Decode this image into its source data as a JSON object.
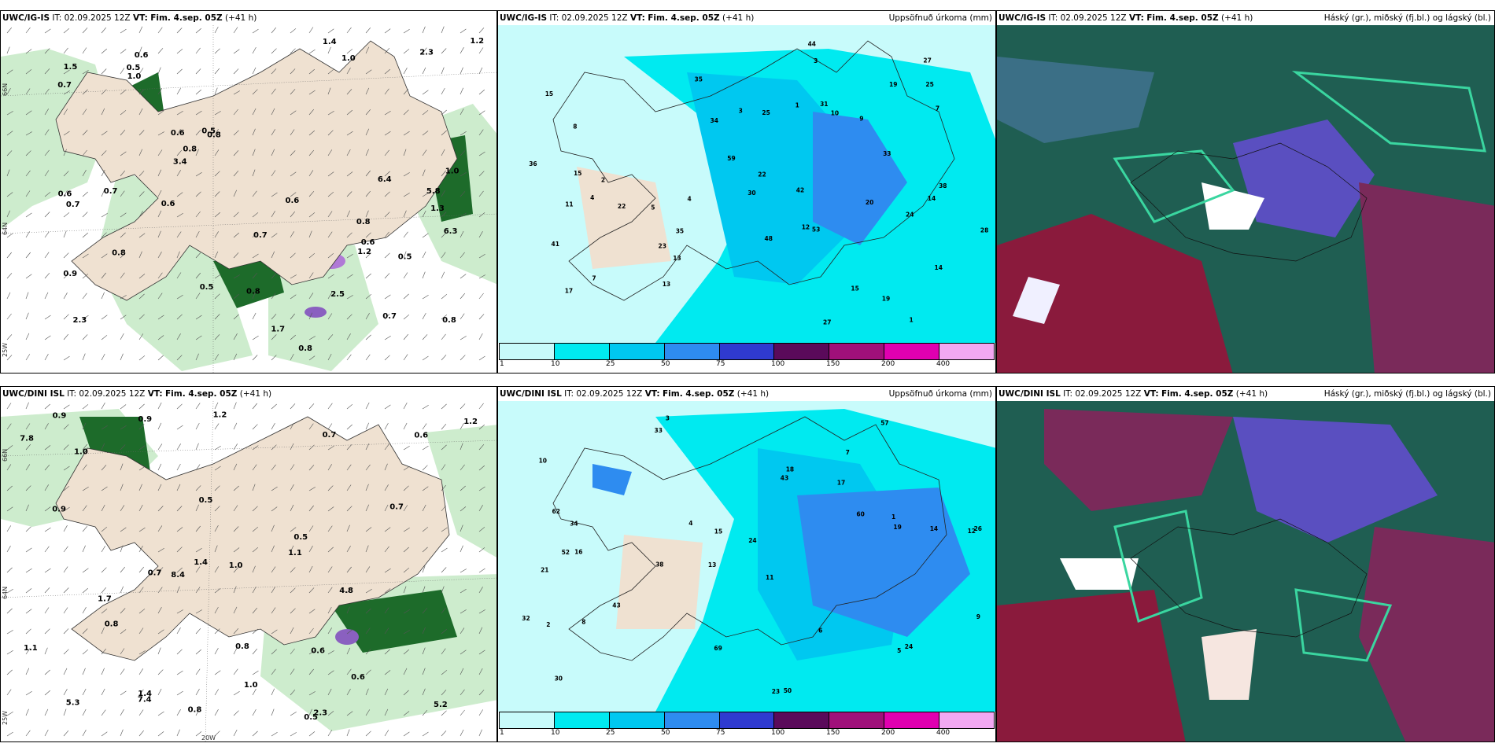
{
  "panels": [
    {
      "id": "p1",
      "title_model": "UWC/IG-IS",
      "title_it": "IT: 02.09.2025 12Z",
      "title_vt_label": "VT:",
      "title_vt": "Fim. 4.sep. 05Z",
      "title_lead": "(+41 h)",
      "subtitle": "",
      "kind": "wind"
    },
    {
      "id": "p2",
      "title_model": "UWC/IG-IS",
      "title_it": "IT: 02.09.2025 12Z",
      "title_vt_label": "VT:",
      "title_vt": "Fim. 4.sep. 05Z",
      "title_lead": "(+41 h)",
      "subtitle": "Uppsöfnuð úrkoma (mm)",
      "kind": "precip"
    },
    {
      "id": "p3",
      "title_model": "UWC/IG-IS",
      "title_it": "IT: 02.09.2025 12Z",
      "title_vt_label": "VT:",
      "title_vt": "Fim. 4.sep. 05Z",
      "title_lead": "(+41 h)",
      "subtitle": "Háský (gr.), miðský (fj.bl.) og lágský (bl.)",
      "kind": "cloud"
    },
    {
      "id": "p4",
      "title_model": "UWC/DINI ISL",
      "title_it": "IT: 02.09.2025 12Z",
      "title_vt_label": "VT:",
      "title_vt": "Fim. 4.sep. 05Z",
      "title_lead": "(+41 h)",
      "subtitle": "",
      "kind": "wind"
    },
    {
      "id": "p5",
      "title_model": "UWC/DINI ISL",
      "title_it": "IT: 02.09.2025 12Z",
      "title_vt_label": "VT:",
      "title_vt": "Fim. 4.sep. 05Z",
      "title_lead": "(+41 h)",
      "subtitle": "Uppsöfnuð úrkoma (mm)",
      "kind": "precip"
    },
    {
      "id": "p6",
      "title_model": "UWC/DINI ISL",
      "title_it": "IT: 02.09.2025 12Z",
      "title_vt_label": "VT:",
      "title_vt": "Fim. 4.sep. 05Z",
      "title_lead": "(+41 h)",
      "subtitle": "Háský (gr.), miðský (fj.bl.) og lágský (bl.)",
      "kind": "cloud"
    }
  ],
  "lat_labels": {
    "n66": "66N",
    "n64": "64N",
    "w25": "25W",
    "w20": "20W"
  },
  "colorbar": {
    "ticks": [
      "1",
      "10",
      "25",
      "50",
      "75",
      "100",
      "150",
      "200",
      "400"
    ],
    "colors": [
      "#c8fbfb",
      "#00eaf0",
      "#00c8f0",
      "#2e8cf0",
      "#2f3ad0",
      "#5a0a5a",
      "#a0107a",
      "#e000b0",
      "#f2a8f2"
    ]
  },
  "wind_values_p1": [
    "0.8",
    "1.3",
    "2.3",
    "0.6",
    "0.8",
    "0.7",
    "0.9",
    "1.0",
    "0.6",
    "0.8",
    "0.7",
    "0.6",
    "1.5",
    "0.8",
    "0.5",
    "1.0",
    "0.7",
    "0.6",
    "0.5",
    "0.8",
    "1.2",
    "2.3",
    "3.4",
    "6.3",
    "1.4",
    "0.5",
    "0.6",
    "0.7",
    "1.0",
    "6.4",
    "1.7",
    "2.5",
    "0.8",
    "0.6",
    "5.8",
    "0.5",
    "1.2",
    "0.7",
    "0.8"
  ],
  "wind_values_p4": [
    "0.8",
    "0.5",
    "1.4",
    "0.6",
    "0.9",
    "1.0",
    "0.7",
    "5.2",
    "1.2",
    "0.5",
    "0.6",
    "1.0",
    "1.4",
    "0.8",
    "0.7",
    "1.1",
    "0.9",
    "7.4",
    "8.4",
    "7.8",
    "0.6",
    "1.2",
    "0.5",
    "5.3",
    "0.7",
    "1.7",
    "1.1",
    "0.8",
    "0.9",
    "4.8",
    "1.0",
    "2.3"
  ],
  "precip_values_p2": [
    "1",
    "4",
    "12",
    "15",
    "14",
    "8",
    "7",
    "5",
    "9",
    "3",
    "10",
    "19",
    "13",
    "35",
    "42",
    "41",
    "20",
    "22",
    "36",
    "17",
    "27",
    "25",
    "33",
    "28",
    "38",
    "15",
    "22",
    "30",
    "59",
    "25",
    "53",
    "11",
    "23",
    "31",
    "34",
    "24",
    "14",
    "15",
    "19",
    "27",
    "35",
    "48",
    "13",
    "44",
    "4",
    "2",
    "7",
    "3",
    "1"
  ],
  "precip_values_p5": [
    "3",
    "7",
    "12",
    "13",
    "11",
    "16",
    "10",
    "17",
    "21",
    "43",
    "24",
    "30",
    "33",
    "38",
    "23",
    "50",
    "69",
    "57",
    "60",
    "43",
    "34",
    "52",
    "26",
    "14",
    "32",
    "62",
    "15",
    "19",
    "24",
    "2",
    "5",
    "18",
    "8",
    "4",
    "6",
    "9",
    "1"
  ]
}
